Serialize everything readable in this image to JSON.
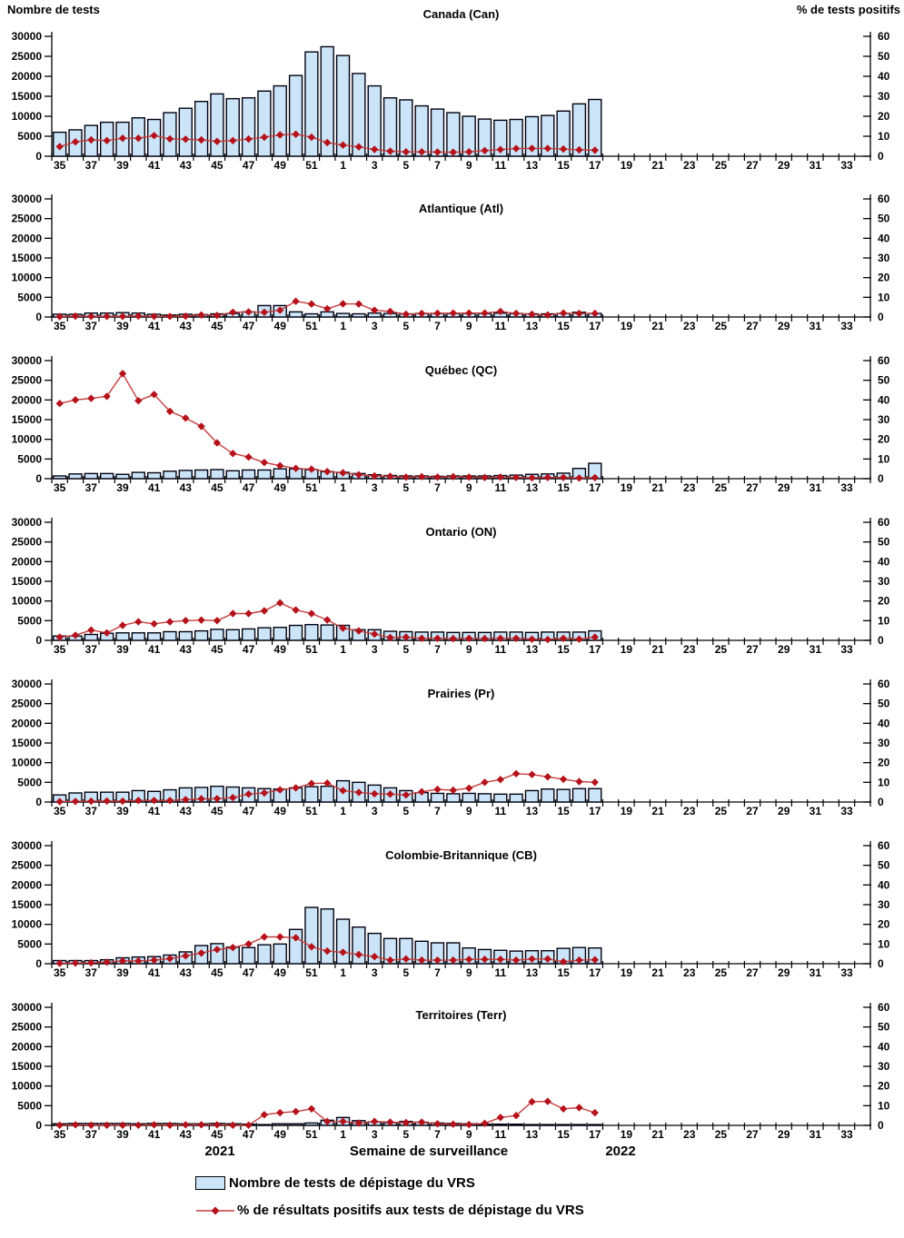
{
  "labels": {
    "left_axis_title": "Nombre de tests",
    "right_axis_title": "% de tests positifs",
    "x_axis_title": "Semaine de surveillance",
    "year_left": "2021",
    "year_right": "2022"
  },
  "legend": {
    "tests_label": "Nombre de tests de dépistage du VRS",
    "pct_label": "% de résultats positifs aux tests de dépistage du VRS"
  },
  "colors": {
    "bar_fill": "#CBE4F7",
    "bar_stroke": "#000010",
    "line": "#C63C3C",
    "marker": "#B5121B",
    "axis": "#000000"
  },
  "chart_data": {
    "type": "bar+line",
    "x_label": "Semaine de surveillance",
    "categories": [
      35,
      36,
      37,
      38,
      39,
      40,
      41,
      42,
      43,
      44,
      45,
      46,
      47,
      48,
      49,
      50,
      51,
      52,
      1,
      2,
      3,
      4,
      5,
      6,
      7,
      8,
      9,
      10,
      11,
      12,
      13,
      14,
      15,
      16,
      17,
      18,
      19,
      20,
      21,
      22,
      23,
      24,
      25,
      26,
      27,
      28,
      29,
      30,
      31,
      32,
      33,
      34
    ],
    "left_axis": {
      "min": 0,
      "max": 30000,
      "step": 5000
    },
    "right_axis": {
      "min": 0,
      "max": 60,
      "step": 10
    },
    "panels": [
      {
        "title": "Canada (Can)",
        "tests": [
          6000,
          6600,
          7700,
          8500,
          8500,
          9600,
          9200,
          10900,
          12000,
          13700,
          15600,
          14400,
          14600,
          16300,
          17600,
          20200,
          26100,
          27400,
          25200,
          20700,
          17600,
          14600,
          14100,
          12600,
          11800,
          10900,
          10000,
          9300,
          9000,
          9200,
          9900,
          10200,
          11300,
          13100,
          14200
        ],
        "pct_positive": [
          4.8,
          7.2,
          8.2,
          7.8,
          9.0,
          9.0,
          10.3,
          8.7,
          8.5,
          8.2,
          7.4,
          7.8,
          8.6,
          9.5,
          10.7,
          11.0,
          9.5,
          6.8,
          5.6,
          4.7,
          3.4,
          2.5,
          2.2,
          2.2,
          2.1,
          2.0,
          2.2,
          2.8,
          3.3,
          3.8,
          3.9,
          3.9,
          3.6,
          3.2,
          3.0
        ]
      },
      {
        "title": "Atlantique (Atl)",
        "tests": [
          700,
          700,
          1000,
          1000,
          1100,
          1000,
          700,
          500,
          700,
          600,
          800,
          900,
          1300,
          2900,
          2900,
          1300,
          800,
          1300,
          900,
          800,
          1000,
          900,
          800,
          900,
          900,
          900,
          900,
          900,
          1000,
          900,
          800,
          800,
          900,
          1200,
          900
        ],
        "pct_positive": [
          0.2,
          0.4,
          0.3,
          0.3,
          0.3,
          0.5,
          0.3,
          0.3,
          0.4,
          1.0,
          0.8,
          2.4,
          2.6,
          2.4,
          3.4,
          8.0,
          6.6,
          4.2,
          6.7,
          6.6,
          3.4,
          2.8,
          1.4,
          1.8,
          1.9,
          2.0,
          2.0,
          2.0,
          2.8,
          1.8,
          1.4,
          1.0,
          2.0,
          1.8,
          1.8
        ]
      },
      {
        "title": "Québec (QC)",
        "tests": [
          700,
          1200,
          1300,
          1300,
          1100,
          1600,
          1500,
          1900,
          2100,
          2200,
          2300,
          2000,
          2200,
          2200,
          2500,
          2500,
          2300,
          1800,
          1600,
          1300,
          1000,
          800,
          700,
          700,
          600,
          700,
          700,
          700,
          800,
          900,
          1100,
          1200,
          1400,
          2600,
          3900
        ],
        "pct_positive": [
          38.2,
          40.0,
          40.8,
          41.8,
          53.4,
          39.6,
          42.8,
          34.2,
          30.8,
          26.6,
          18.2,
          12.8,
          11.0,
          8.2,
          6.6,
          5.2,
          4.8,
          3.6,
          3.0,
          2.0,
          1.4,
          1.2,
          0.8,
          1.0,
          0.8,
          1.0,
          0.8,
          0.6,
          0.8,
          0.6,
          0.4,
          0.6,
          0.6,
          0.3,
          0.5
        ]
      },
      {
        "title": "Ontario (ON)",
        "tests": [
          1100,
          1100,
          1500,
          1800,
          1900,
          1900,
          1900,
          2200,
          2200,
          2400,
          2800,
          2700,
          2900,
          3200,
          3300,
          3800,
          4000,
          3900,
          3800,
          2700,
          2700,
          2300,
          2200,
          2100,
          2100,
          2000,
          2000,
          2000,
          2100,
          2100,
          2000,
          2100,
          2100,
          2100,
          2400
        ],
        "pct_positive": [
          1.6,
          2.6,
          5.2,
          3.8,
          7.6,
          9.4,
          8.4,
          9.4,
          10.0,
          10.3,
          10.0,
          13.6,
          13.6,
          15.0,
          19.0,
          15.4,
          13.6,
          10.4,
          6.2,
          4.8,
          3.2,
          1.4,
          1.6,
          1.0,
          1.0,
          0.9,
          1.0,
          0.9,
          1.0,
          1.0,
          0.6,
          0.4,
          1.0,
          0.6,
          1.6
        ]
      },
      {
        "title": "Prairies (Pr)",
        "tests": [
          1800,
          2300,
          2500,
          2500,
          2500,
          2900,
          2700,
          3100,
          3600,
          3700,
          4000,
          3800,
          3600,
          3400,
          3300,
          3600,
          3900,
          4000,
          5400,
          5000,
          4300,
          3600,
          2900,
          2400,
          2200,
          2100,
          2200,
          2100,
          2000,
          2000,
          2900,
          3300,
          3200,
          3400,
          3400
        ],
        "pct_positive": [
          0.2,
          0.3,
          0.4,
          0.5,
          0.4,
          0.8,
          0.8,
          0.8,
          1.2,
          1.6,
          1.7,
          2.2,
          4.0,
          4.6,
          6.2,
          7.2,
          9.4,
          9.6,
          5.8,
          4.9,
          4.2,
          4.0,
          3.6,
          5.2,
          6.4,
          6.0,
          7.0,
          10.0,
          11.4,
          14.4,
          14.0,
          12.8,
          11.6,
          10.4,
          10.0
        ]
      },
      {
        "title": "Colombie-Britannique (CB)",
        "tests": [
          800,
          800,
          800,
          1000,
          1500,
          1700,
          1800,
          2200,
          3000,
          4600,
          5100,
          4200,
          4100,
          4800,
          5000,
          8700,
          14300,
          13900,
          11300,
          9300,
          7700,
          6400,
          6400,
          5700,
          5300,
          5300,
          4000,
          3600,
          3400,
          3200,
          3300,
          3300,
          3900,
          4100,
          4000
        ],
        "pct_positive": [
          0.2,
          0.3,
          0.4,
          0.8,
          1.4,
          1.4,
          1.8,
          2.6,
          4.0,
          5.4,
          7.2,
          8.2,
          10.0,
          13.6,
          13.6,
          13.2,
          8.6,
          6.4,
          5.8,
          4.6,
          3.6,
          1.8,
          2.4,
          1.8,
          1.8,
          1.8,
          2.2,
          2.2,
          2.2,
          1.8,
          2.4,
          2.4,
          1.0,
          1.8,
          2.0
        ]
      },
      {
        "title": "Territoires (Terr)",
        "tests": [
          400,
          500,
          500,
          500,
          500,
          400,
          500,
          500,
          400,
          400,
          500,
          400,
          300,
          200,
          400,
          400,
          600,
          1300,
          2000,
          1200,
          900,
          700,
          1000,
          800,
          600,
          500,
          400,
          300,
          300,
          300,
          200,
          200,
          200,
          200,
          200
        ],
        "pct_positive": [
          0.1,
          0.3,
          0.1,
          0.1,
          0.1,
          0.1,
          0.3,
          0.1,
          0.3,
          0.3,
          0.3,
          0.1,
          0.1,
          5.4,
          6.4,
          7.0,
          8.4,
          2.0,
          2.0,
          1.2,
          2.0,
          1.6,
          1.4,
          1.6,
          0.8,
          0.6,
          0.4,
          1.0,
          4.0,
          5.0,
          12.0,
          12.2,
          8.4,
          9.0,
          6.4
        ]
      }
    ]
  }
}
